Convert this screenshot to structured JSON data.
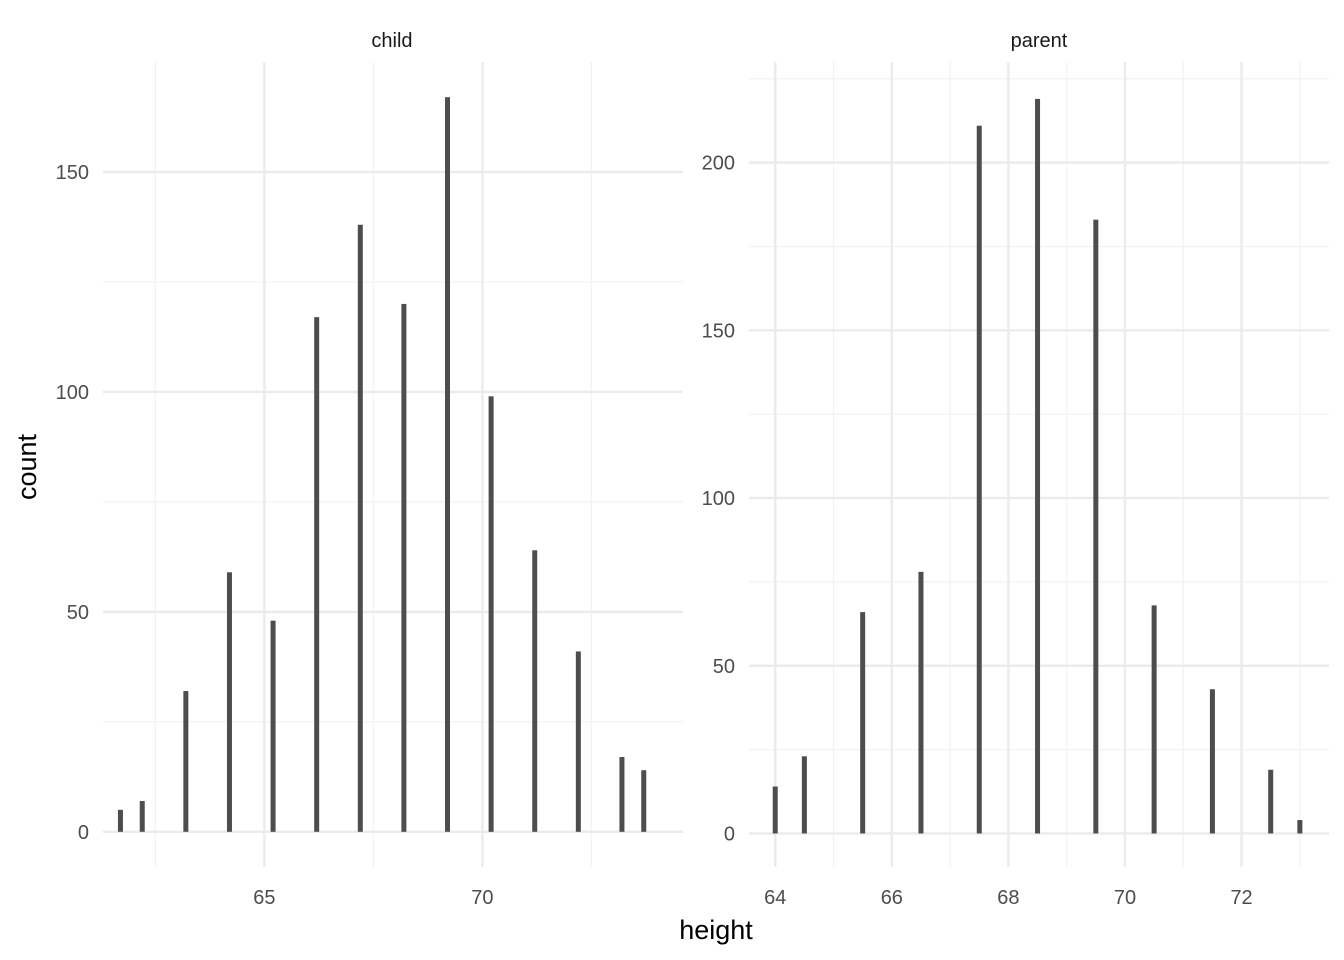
{
  "chart_data": [
    {
      "type": "bar",
      "panel_title": "child",
      "x": [
        61.7,
        62.2,
        63.2,
        64.2,
        65.2,
        66.2,
        67.2,
        68.2,
        69.2,
        70.2,
        71.2,
        72.2,
        73.2,
        73.7
      ],
      "values": [
        5,
        7,
        32,
        59,
        48,
        117,
        138,
        120,
        167,
        99,
        64,
        41,
        17,
        14
      ],
      "xlim": [
        61.3,
        74.6
      ],
      "ylim": [
        -8,
        175
      ],
      "x_ticks": [
        65,
        70
      ],
      "x_minor": [
        62.5,
        67.5,
        72.5
      ],
      "y_ticks": [
        0,
        50,
        100,
        150
      ],
      "y_minor": [
        25,
        75,
        125
      ]
    },
    {
      "type": "bar",
      "panel_title": "parent",
      "x": [
        64,
        64.5,
        65.5,
        66.5,
        67.5,
        68.5,
        69.5,
        70.5,
        71.5,
        72.5,
        73
      ],
      "values": [
        14,
        23,
        66,
        78,
        211,
        219,
        183,
        68,
        43,
        19,
        4
      ],
      "xlim": [
        63.55,
        73.5
      ],
      "ylim": [
        -10,
        230
      ],
      "x_ticks": [
        64,
        66,
        68,
        70,
        72
      ],
      "x_minor": [
        65,
        67,
        69,
        71,
        73
      ],
      "y_ticks": [
        0,
        50,
        100,
        150,
        200
      ],
      "y_minor": [
        25,
        75,
        125,
        175,
        225
      ]
    }
  ],
  "axes": {
    "xlabel": "height",
    "ylabel": "count"
  },
  "style": {
    "bar_color": "#4d4d4d",
    "grid_major": "#ebebeb",
    "grid_minor": "#f2f2f2",
    "text_color": "#4d4d4d",
    "title_color": "#1a1a1a"
  }
}
